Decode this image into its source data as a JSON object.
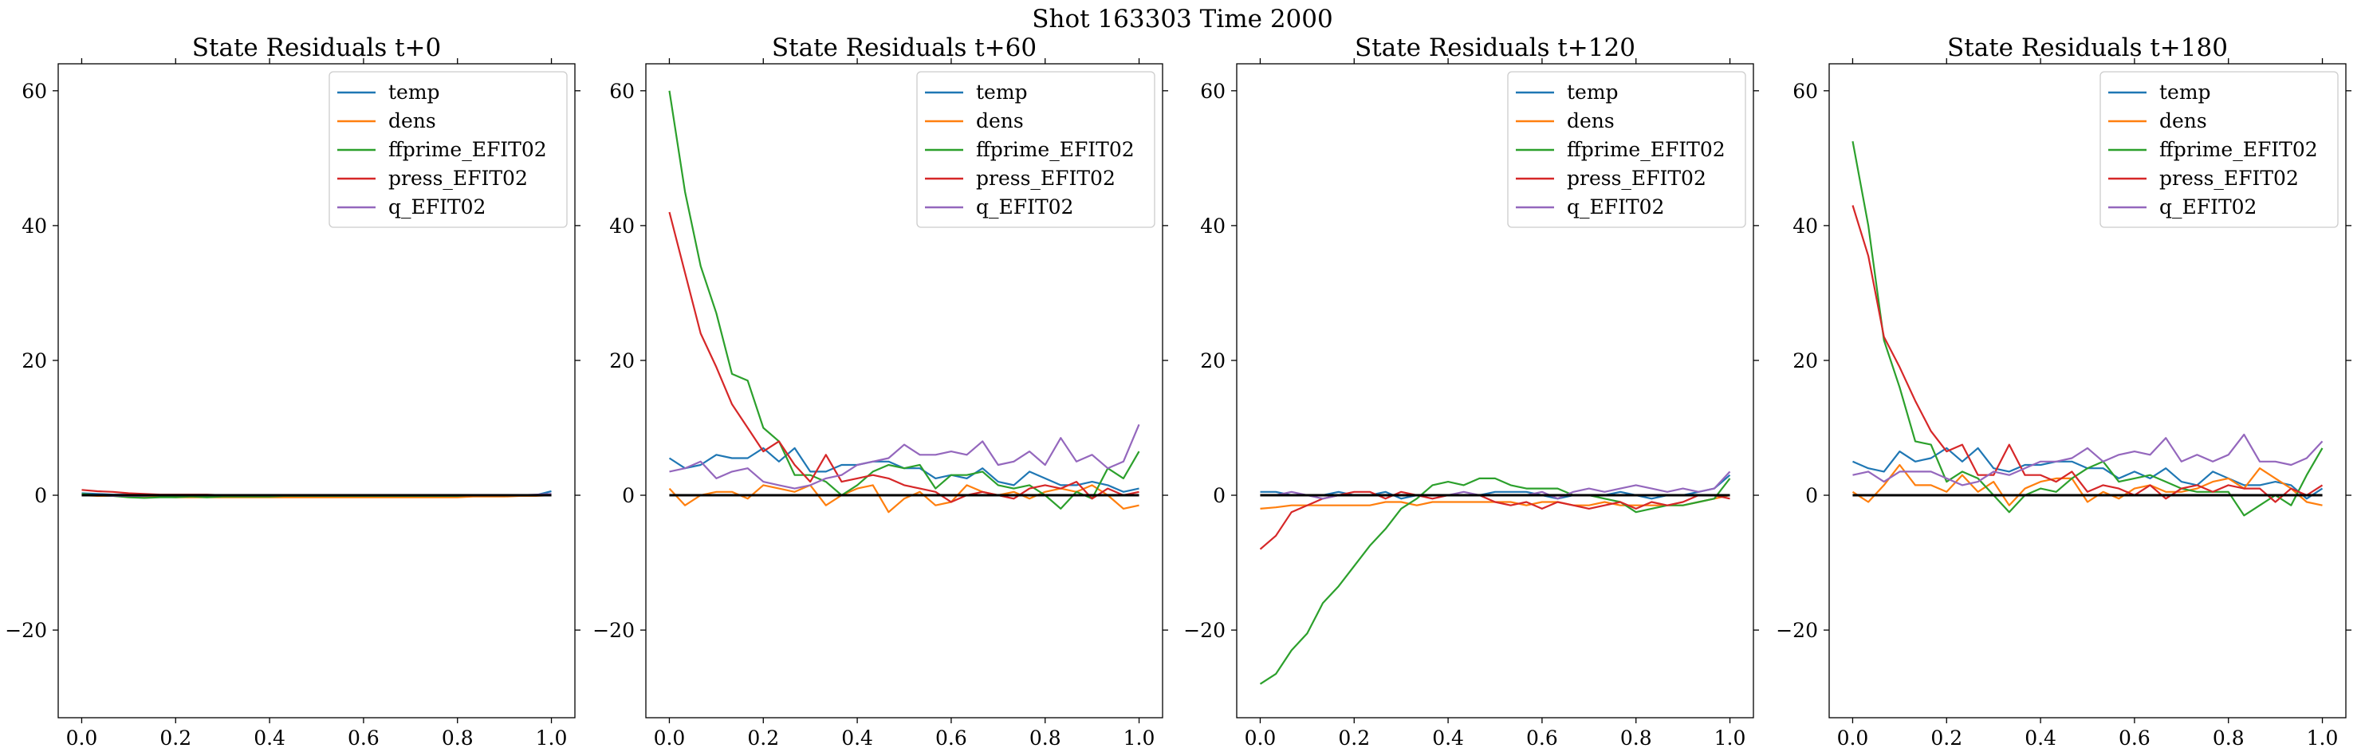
{
  "figure": {
    "title": "Shot 163303   Time 2000"
  },
  "legend_entries": [
    "temp",
    "dens",
    "ffprime_EFIT02",
    "press_EFIT02",
    "q_EFIT02"
  ],
  "colors": {
    "temp": "#1f77b4",
    "dens": "#ff7f0e",
    "ffprime_EFIT02": "#2ca02c",
    "press_EFIT02": "#d62728",
    "q_EFIT02": "#9467bd",
    "zero_line": "#000000"
  },
  "chart_data": [
    {
      "type": "line",
      "title": "State Residuals t+0",
      "xlim": [
        -0.05,
        1.05
      ],
      "ylim": [
        -33,
        64
      ],
      "xticks": [
        0.0,
        0.2,
        0.4,
        0.6,
        0.8,
        1.0
      ],
      "xtick_labels": [
        "0.0",
        "0.2",
        "0.4",
        "0.6",
        "0.8",
        "1.0"
      ],
      "yticks": [
        -20,
        0,
        20,
        40,
        60
      ],
      "ytick_labels": [
        "−20",
        "0",
        "20",
        "40",
        "60"
      ],
      "legend": "upper-right",
      "grid": false,
      "x": [
        0.0,
        0.0333,
        0.0667,
        0.1,
        0.1333,
        0.1667,
        0.2,
        0.2333,
        0.2667,
        0.3,
        0.3333,
        0.3667,
        0.4,
        0.4333,
        0.4667,
        0.5,
        0.5333,
        0.5667,
        0.6,
        0.6333,
        0.6667,
        0.7,
        0.7333,
        0.7667,
        0.8,
        0.8333,
        0.8667,
        0.9,
        0.9333,
        0.9667,
        1.0
      ],
      "series": [
        {
          "name": "temp",
          "values": [
            0.3,
            0.2,
            0.1,
            0.1,
            0.0,
            0.0,
            0.0,
            -0.1,
            -0.1,
            -0.1,
            0.0,
            0.0,
            0.0,
            0.0,
            0.0,
            0.0,
            0.0,
            0.0,
            0.0,
            0.0,
            0.0,
            0.0,
            0.0,
            0.0,
            0.0,
            0.0,
            0.0,
            0.0,
            0.0,
            0.0,
            0.6
          ]
        },
        {
          "name": "dens",
          "values": [
            0.0,
            -0.1,
            -0.1,
            -0.2,
            -0.2,
            -0.2,
            -0.3,
            -0.3,
            -0.3,
            -0.3,
            -0.3,
            -0.3,
            -0.3,
            -0.3,
            -0.3,
            -0.3,
            -0.3,
            -0.3,
            -0.3,
            -0.3,
            -0.3,
            -0.3,
            -0.3,
            -0.3,
            -0.3,
            -0.2,
            -0.2,
            -0.2,
            -0.1,
            -0.1,
            0.0
          ]
        },
        {
          "name": "ffprime_EFIT02",
          "values": [
            0.2,
            0.0,
            -0.1,
            -0.3,
            -0.4,
            -0.3,
            -0.3,
            -0.2,
            -0.3,
            -0.2,
            -0.2,
            -0.2,
            -0.2,
            -0.1,
            -0.1,
            -0.1,
            -0.1,
            -0.1,
            -0.1,
            -0.1,
            -0.1,
            -0.1,
            -0.1,
            -0.1,
            -0.1,
            0.0,
            0.0,
            0.0,
            0.0,
            0.0,
            0.1
          ]
        },
        {
          "name": "press_EFIT02",
          "values": [
            0.8,
            0.6,
            0.5,
            0.3,
            0.2,
            0.1,
            0.1,
            0.1,
            0.1,
            0.0,
            0.0,
            0.0,
            0.0,
            0.0,
            0.0,
            0.0,
            0.0,
            0.0,
            0.0,
            0.0,
            0.0,
            0.0,
            0.0,
            0.0,
            0.0,
            0.0,
            0.0,
            0.0,
            0.0,
            0.0,
            0.0
          ]
        },
        {
          "name": "q_EFIT02",
          "values": [
            0.0,
            0.0,
            -0.1,
            -0.1,
            -0.1,
            0.0,
            0.0,
            0.0,
            0.0,
            0.0,
            0.0,
            0.0,
            0.0,
            0.0,
            0.0,
            0.0,
            0.0,
            0.0,
            0.0,
            0.0,
            0.0,
            0.0,
            0.0,
            0.0,
            0.0,
            0.0,
            0.0,
            0.0,
            0.0,
            0.1,
            0.2
          ]
        }
      ]
    },
    {
      "type": "line",
      "title": "State Residuals t+60",
      "xlim": [
        -0.05,
        1.05
      ],
      "ylim": [
        -33,
        64
      ],
      "xticks": [
        0.0,
        0.2,
        0.4,
        0.6,
        0.8,
        1.0
      ],
      "xtick_labels": [
        "0.0",
        "0.2",
        "0.4",
        "0.6",
        "0.8",
        "1.0"
      ],
      "yticks": [
        -20,
        0,
        20,
        40,
        60
      ],
      "ytick_labels": [
        "−20",
        "0",
        "20",
        "40",
        "60"
      ],
      "legend": "upper-right",
      "grid": false,
      "x": [
        0.0,
        0.0333,
        0.0667,
        0.1,
        0.1333,
        0.1667,
        0.2,
        0.2333,
        0.2667,
        0.3,
        0.3333,
        0.3667,
        0.4,
        0.4333,
        0.4667,
        0.5,
        0.5333,
        0.5667,
        0.6,
        0.6333,
        0.6667,
        0.7,
        0.7333,
        0.7667,
        0.8,
        0.8333,
        0.8667,
        0.9,
        0.9333,
        0.9667,
        1.0
      ],
      "series": [
        {
          "name": "temp",
          "values": [
            5.5,
            4.0,
            4.5,
            6.0,
            5.5,
            5.5,
            7.0,
            5.0,
            7.0,
            3.5,
            3.5,
            4.5,
            4.5,
            5.0,
            5.0,
            4.0,
            4.0,
            2.5,
            3.0,
            2.5,
            4.0,
            2.0,
            1.5,
            3.5,
            2.5,
            1.5,
            1.5,
            2.0,
            1.5,
            0.5,
            1.0
          ]
        },
        {
          "name": "dens",
          "values": [
            1.0,
            -1.5,
            0.0,
            0.5,
            0.5,
            -0.5,
            1.5,
            1.0,
            0.5,
            1.5,
            -1.5,
            0.0,
            1.0,
            1.5,
            -2.5,
            -0.5,
            0.5,
            -1.5,
            -1.0,
            1.5,
            0.5,
            0.0,
            0.5,
            -0.5,
            0.5,
            1.0,
            0.5,
            1.5,
            0.0,
            -2.0,
            -1.5
          ]
        },
        {
          "name": "ffprime_EFIT02",
          "values": [
            60.0,
            45.0,
            34.0,
            27.0,
            18.0,
            17.0,
            10.0,
            8.0,
            3.0,
            3.0,
            2.0,
            0.0,
            1.5,
            3.5,
            4.5,
            4.0,
            4.5,
            1.0,
            3.0,
            3.0,
            3.5,
            1.5,
            1.0,
            1.5,
            0.0,
            -2.0,
            0.5,
            -0.5,
            4.0,
            2.5,
            6.5
          ]
        },
        {
          "name": "press_EFIT02",
          "values": [
            42.0,
            33.0,
            24.0,
            19.0,
            13.5,
            10.0,
            6.5,
            8.0,
            4.5,
            2.0,
            6.0,
            2.0,
            2.5,
            3.0,
            2.5,
            1.5,
            1.0,
            0.5,
            -1.0,
            0.0,
            0.5,
            0.0,
            -0.5,
            1.0,
            1.5,
            1.0,
            2.0,
            -0.5,
            1.0,
            0.0,
            0.5
          ]
        },
        {
          "name": "q_EFIT02",
          "values": [
            3.5,
            4.0,
            5.0,
            2.5,
            3.5,
            4.0,
            2.0,
            1.5,
            1.0,
            1.5,
            2.5,
            3.0,
            4.5,
            5.0,
            5.5,
            7.5,
            6.0,
            6.0,
            6.5,
            6.0,
            8.0,
            4.5,
            5.0,
            6.5,
            4.5,
            8.5,
            5.0,
            6.0,
            4.0,
            5.0,
            10.5
          ]
        }
      ]
    },
    {
      "type": "line",
      "title": "State Residuals t+120",
      "xlim": [
        -0.05,
        1.05
      ],
      "ylim": [
        -33,
        64
      ],
      "xticks": [
        0.0,
        0.2,
        0.4,
        0.6,
        0.8,
        1.0
      ],
      "xtick_labels": [
        "0.0",
        "0.2",
        "0.4",
        "0.6",
        "0.8",
        "1.0"
      ],
      "yticks": [
        -20,
        0,
        20,
        40,
        60
      ],
      "ytick_labels": [
        "−20",
        "0",
        "20",
        "40",
        "60"
      ],
      "legend": "upper-right",
      "grid": false,
      "x": [
        0.0,
        0.0333,
        0.0667,
        0.1,
        0.1333,
        0.1667,
        0.2,
        0.2333,
        0.2667,
        0.3,
        0.3333,
        0.3667,
        0.4,
        0.4333,
        0.4667,
        0.5,
        0.5333,
        0.5667,
        0.6,
        0.6333,
        0.6667,
        0.7,
        0.7333,
        0.7667,
        0.8,
        0.8333,
        0.8667,
        0.9,
        0.9333,
        0.9667,
        1.0
      ],
      "series": [
        {
          "name": "temp",
          "values": [
            0.5,
            0.5,
            0.0,
            0.0,
            0.0,
            0.5,
            0.0,
            0.0,
            0.5,
            -0.5,
            0.0,
            0.0,
            0.0,
            0.0,
            0.0,
            0.5,
            0.5,
            0.5,
            0.0,
            -0.5,
            0.0,
            0.0,
            0.0,
            0.5,
            0.0,
            -0.5,
            0.0,
            0.0,
            0.5,
            1.0,
            3.0
          ]
        },
        {
          "name": "dens",
          "values": [
            -2.0,
            -1.8,
            -1.5,
            -1.5,
            -1.5,
            -1.5,
            -1.5,
            -1.5,
            -1.0,
            -1.0,
            -1.5,
            -1.0,
            -1.0,
            -1.0,
            -1.0,
            -1.0,
            -1.0,
            -1.5,
            -1.0,
            -1.0,
            -1.5,
            -1.5,
            -1.0,
            -1.5,
            -1.5,
            -1.5,
            -1.5,
            -1.5,
            -1.0,
            -0.5,
            0.0
          ]
        },
        {
          "name": "ffprime_EFIT02",
          "values": [
            -28.0,
            -26.5,
            -23.0,
            -20.5,
            -16.0,
            -13.5,
            -10.5,
            -7.5,
            -5.0,
            -2.0,
            -0.5,
            1.5,
            2.0,
            1.5,
            2.5,
            2.5,
            1.5,
            1.0,
            1.0,
            1.0,
            0.0,
            0.0,
            -0.5,
            -1.0,
            -2.5,
            -2.0,
            -1.5,
            -1.5,
            -1.0,
            -0.5,
            2.5
          ]
        },
        {
          "name": "press_EFIT02",
          "values": [
            -8.0,
            -6.0,
            -2.5,
            -1.5,
            -0.5,
            0.0,
            0.5,
            0.5,
            -0.5,
            0.5,
            0.0,
            -0.5,
            0.0,
            0.0,
            0.0,
            -1.0,
            -1.5,
            -1.0,
            -2.0,
            -1.0,
            -1.5,
            -2.0,
            -1.5,
            -1.0,
            -2.0,
            -1.0,
            -1.5,
            -1.0,
            0.0,
            0.0,
            -0.5
          ]
        },
        {
          "name": "q_EFIT02",
          "values": [
            0.0,
            0.0,
            0.5,
            0.0,
            -0.5,
            0.0,
            0.0,
            0.0,
            0.0,
            0.0,
            0.0,
            0.0,
            0.0,
            0.5,
            0.0,
            0.0,
            0.0,
            0.0,
            0.5,
            -0.5,
            0.5,
            1.0,
            0.5,
            1.0,
            1.5,
            1.0,
            0.5,
            1.0,
            0.5,
            1.0,
            3.5
          ]
        }
      ]
    },
    {
      "type": "line",
      "title": "State Residuals t+180",
      "xlim": [
        -0.05,
        1.05
      ],
      "ylim": [
        -33,
        64
      ],
      "xticks": [
        0.0,
        0.2,
        0.4,
        0.6,
        0.8,
        1.0
      ],
      "xtick_labels": [
        "0.0",
        "0.2",
        "0.4",
        "0.6",
        "0.8",
        "1.0"
      ],
      "yticks": [
        -20,
        0,
        20,
        40,
        60
      ],
      "ytick_labels": [
        "−20",
        "0",
        "20",
        "40",
        "60"
      ],
      "legend": "upper-right",
      "grid": false,
      "x": [
        0.0,
        0.0333,
        0.0667,
        0.1,
        0.1333,
        0.1667,
        0.2,
        0.2333,
        0.2667,
        0.3,
        0.3333,
        0.3667,
        0.4,
        0.4333,
        0.4667,
        0.5,
        0.5333,
        0.5667,
        0.6,
        0.6333,
        0.6667,
        0.7,
        0.7333,
        0.7667,
        0.8,
        0.8333,
        0.8667,
        0.9,
        0.9333,
        0.9667,
        1.0
      ],
      "series": [
        {
          "name": "temp",
          "values": [
            5.0,
            4.0,
            3.5,
            6.5,
            5.0,
            5.5,
            7.0,
            5.0,
            7.0,
            4.0,
            3.5,
            4.5,
            4.5,
            5.0,
            5.0,
            4.0,
            4.0,
            2.5,
            3.5,
            2.5,
            4.0,
            2.0,
            1.5,
            3.5,
            2.5,
            1.5,
            1.5,
            2.0,
            1.5,
            -0.5,
            1.0
          ]
        },
        {
          "name": "dens",
          "values": [
            0.5,
            -1.0,
            1.5,
            4.5,
            1.5,
            1.5,
            0.5,
            3.0,
            0.5,
            2.0,
            -1.5,
            1.0,
            2.0,
            2.5,
            2.5,
            -1.0,
            0.5,
            -0.5,
            1.0,
            1.5,
            0.5,
            0.5,
            1.0,
            2.0,
            2.5,
            1.0,
            4.0,
            2.5,
            1.0,
            -1.0,
            -1.5
          ]
        },
        {
          "name": "ffprime_EFIT02",
          "values": [
            52.5,
            40.0,
            23.0,
            16.0,
            8.0,
            7.5,
            2.0,
            3.5,
            2.5,
            0.0,
            -2.5,
            0.0,
            1.0,
            0.5,
            2.5,
            4.0,
            5.0,
            2.0,
            2.5,
            3.0,
            2.0,
            1.0,
            0.5,
            0.5,
            0.5,
            -3.0,
            -1.5,
            0.0,
            -1.5,
            3.0,
            7.0
          ]
        },
        {
          "name": "press_EFIT02",
          "values": [
            43.0,
            35.5,
            23.5,
            19.0,
            14.0,
            9.5,
            6.5,
            7.5,
            3.0,
            3.0,
            7.5,
            3.0,
            3.0,
            2.0,
            3.5,
            0.5,
            1.5,
            1.0,
            0.0,
            1.5,
            -0.5,
            1.0,
            1.5,
            0.5,
            1.5,
            1.0,
            1.0,
            -1.0,
            1.0,
            0.0,
            1.5
          ]
        },
        {
          "name": "q_EFIT02",
          "values": [
            3.0,
            3.5,
            2.0,
            3.5,
            3.5,
            3.5,
            2.5,
            1.5,
            2.0,
            3.5,
            3.0,
            4.0,
            5.0,
            5.0,
            5.5,
            7.0,
            5.0,
            6.0,
            6.5,
            6.0,
            8.5,
            5.0,
            6.0,
            5.0,
            6.0,
            9.0,
            5.0,
            5.0,
            4.5,
            5.5,
            8.0
          ]
        }
      ]
    }
  ]
}
